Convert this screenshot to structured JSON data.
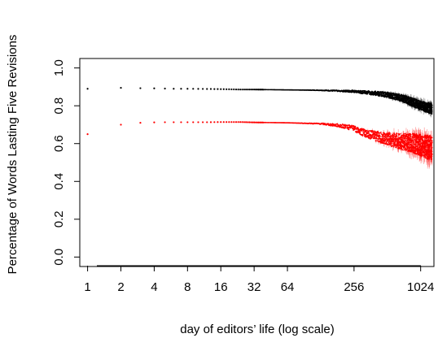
{
  "chart_data": {
    "type": "scatter",
    "xscale": "log2",
    "xlabel": "day of editors’ life (log scale)",
    "ylabel": "Percentage of Words Lasting Five Revisions",
    "xlim": [
      0.85,
      1350
    ],
    "ylim": [
      -0.05,
      1.05
    ],
    "x_ticks": [
      1,
      2,
      4,
      8,
      16,
      32,
      64,
      256,
      1024
    ],
    "x_tick_labels": [
      "1",
      "2",
      "4",
      "8",
      "16",
      "32",
      "64",
      "256",
      "1024"
    ],
    "y_ticks": [
      0.0,
      0.2,
      0.4,
      0.6,
      0.8,
      1.0
    ],
    "y_tick_labels": [
      "0.0",
      "0.2",
      "0.4",
      "0.6",
      "0.8",
      "1.0"
    ],
    "grid": false,
    "legend": "none",
    "series": [
      {
        "color": "#000000",
        "points": [
          [
            1,
            0.89
          ],
          [
            2,
            0.895
          ],
          [
            3,
            0.893
          ],
          [
            4,
            0.892
          ],
          [
            5,
            0.891
          ],
          [
            6,
            0.89
          ],
          [
            8,
            0.89
          ],
          [
            12,
            0.889
          ],
          [
            16,
            0.888
          ],
          [
            24,
            0.886
          ],
          [
            32,
            0.886
          ],
          [
            64,
            0.884
          ],
          [
            128,
            0.882
          ],
          [
            256,
            0.876
          ],
          [
            400,
            0.866
          ],
          [
            512,
            0.858
          ],
          [
            700,
            0.84
          ],
          [
            900,
            0.815
          ],
          [
            1024,
            0.8
          ],
          [
            1300,
            0.785
          ]
        ],
        "spread_at_end": 0.03
      },
      {
        "color": "#ff0000",
        "points": [
          [
            1,
            0.65
          ],
          [
            2,
            0.7
          ],
          [
            3,
            0.71
          ],
          [
            4,
            0.712
          ],
          [
            5,
            0.713
          ],
          [
            6,
            0.713
          ],
          [
            8,
            0.713
          ],
          [
            12,
            0.713
          ],
          [
            16,
            0.714
          ],
          [
            24,
            0.714
          ],
          [
            32,
            0.712
          ],
          [
            64,
            0.71
          ],
          [
            128,
            0.705
          ],
          [
            192,
            0.695
          ],
          [
            256,
            0.68
          ],
          [
            320,
            0.655
          ],
          [
            400,
            0.64
          ],
          [
            512,
            0.625
          ],
          [
            700,
            0.61
          ],
          [
            900,
            0.6
          ],
          [
            1024,
            0.59
          ],
          [
            1300,
            0.575
          ]
        ],
        "spread_at_end": 0.07
      }
    ]
  }
}
